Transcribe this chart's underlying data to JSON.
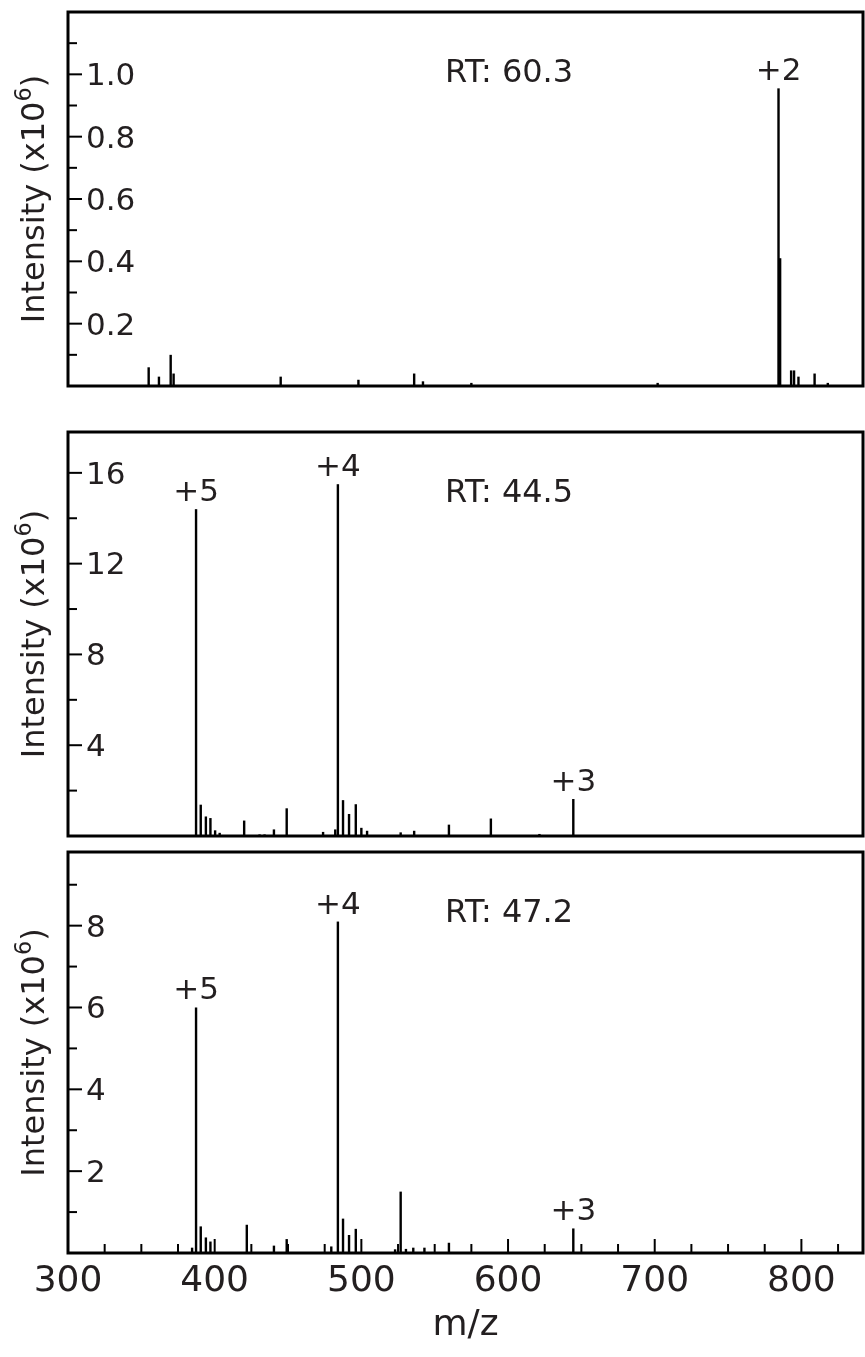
{
  "chart_data": [
    {
      "type": "bar",
      "ylabel": "Intensity (x10$^{6}$)",
      "xlim": [
        300,
        842
      ],
      "ylim": [
        0,
        1.2
      ],
      "tick_labels": "y",
      "yticks": [
        {
          "value": 0.1,
          "label": null
        },
        0.2,
        {
          "value": 0.3,
          "label": null
        },
        0.4,
        {
          "value": 0.5,
          "label": null
        },
        0.6,
        {
          "value": 0.7,
          "label": null
        },
        0.8,
        {
          "value": 0.9,
          "label": null
        },
        {
          "value": 1.0,
          "label": "1.0"
        },
        {
          "value": 1.1,
          "label": null
        }
      ],
      "x": [
        355,
        362,
        370,
        372,
        445,
        498,
        536,
        542,
        575,
        702,
        784.4,
        785.5,
        793,
        795,
        798,
        809,
        818
      ],
      "values": [
        0.06,
        0.03,
        0.1,
        0.04,
        0.03,
        0.02,
        0.04,
        0.015,
        0.01,
        0.01,
        0.955,
        0.41,
        0.05,
        0.05,
        0.03,
        0.04,
        0.01
      ],
      "color": "#000000",
      "annotations": [
        "RT: 60.3",
        {
          "text": "+2",
          "x": 784.4,
          "y": 0.955
        }
      ]
    },
    {
      "type": "bar",
      "ylabel": "Intensity (x10$^{6}$)",
      "xlim": [
        300,
        842
      ],
      "ylim": [
        0,
        17.8
      ],
      "tick_labels": "y",
      "yticks": [
        {
          "value": 2,
          "label": null
        },
        4,
        {
          "value": 6,
          "label": null
        },
        8,
        {
          "value": 10,
          "label": null
        },
        12,
        {
          "value": 14,
          "label": null
        },
        16
      ],
      "x": [
        387.3,
        390.5,
        394,
        397.1,
        400.3,
        403.4,
        420.1,
        430.6,
        434,
        440.4,
        449.1,
        473.9,
        482.2,
        484,
        487.5,
        491.6,
        496.2,
        500,
        503.9,
        526.8,
        536,
        559.7,
        588.3,
        621.4,
        644.5
      ],
      "values": [
        14.4,
        1.38,
        0.86,
        0.79,
        0.25,
        0.14,
        0.68,
        0.07,
        0.07,
        0.29,
        1.22,
        0.18,
        0.29,
        15.5,
        1.58,
        0.97,
        1.4,
        0.36,
        0.23,
        0.16,
        0.23,
        0.5,
        0.77,
        0.09,
        1.63
      ],
      "color": "#000000",
      "annotations": [
        "RT: 44.5",
        {
          "text": "+5",
          "x": 387.3,
          "y": 14.4
        },
        {
          "text": "+4",
          "x": 484,
          "y": 15.5
        },
        {
          "text": "+3",
          "x": 644.5,
          "y": 1.63
        }
      ]
    },
    {
      "type": "bar",
      "ylabel": "Intensity (x10$^{6}$)",
      "xlabel": "m/z",
      "xlim": [
        300,
        842
      ],
      "ylim": [
        0,
        9.8
      ],
      "xticks": [
        300,
        {
          "value": 325,
          "label": null
        },
        400,
        {
          "value": 425,
          "label": null
        },
        {
          "value": 450,
          "label": null
        },
        {
          "value": 475,
          "label": null
        },
        500,
        {
          "value": 525,
          "label": null
        },
        {
          "value": 550,
          "label": null
        },
        {
          "value": 575,
          "label": null
        },
        600,
        {
          "value": 625,
          "label": null
        },
        {
          "value": 650,
          "label": null
        },
        {
          "value": 675,
          "label": null
        },
        700,
        {
          "value": 725,
          "label": null
        },
        {
          "value": 750,
          "label": null
        },
        {
          "value": 775,
          "label": null
        },
        800,
        {
          "value": 825,
          "label": null
        },
        {
          "value": 350,
          "label": null
        },
        {
          "value": 375,
          "label": null
        }
      ],
      "yticks": [
        {
          "value": 1,
          "label": null
        },
        2,
        {
          "value": 3,
          "label": null
        },
        4,
        {
          "value": 5,
          "label": null
        },
        6,
        {
          "value": 7,
          "label": null
        },
        8,
        {
          "value": 9,
          "label": null
        }
      ],
      "x": [
        384.6,
        387.3,
        390.5,
        394,
        397.1,
        421.9,
        440.4,
        449.1,
        479.5,
        484,
        487.5,
        491.6,
        496.2,
        523,
        526.8,
        530.4,
        535.4,
        543,
        559.7,
        644.5
      ],
      "values": [
        0.13,
        6.0,
        0.65,
        0.38,
        0.28,
        0.69,
        0.18,
        0.34,
        0.16,
        8.1,
        0.84,
        0.44,
        0.59,
        0.09,
        1.5,
        0.1,
        0.13,
        0.13,
        0.25,
        0.6
      ],
      "color": "#000000",
      "annotations": [
        "RT: 47.2",
        {
          "text": "+5",
          "x": 387.3,
          "y": 6.0
        },
        {
          "text": "+4",
          "x": 484,
          "y": 8.1
        },
        {
          "text": "+3",
          "x": 644.5,
          "y": 0.6
        }
      ]
    }
  ]
}
